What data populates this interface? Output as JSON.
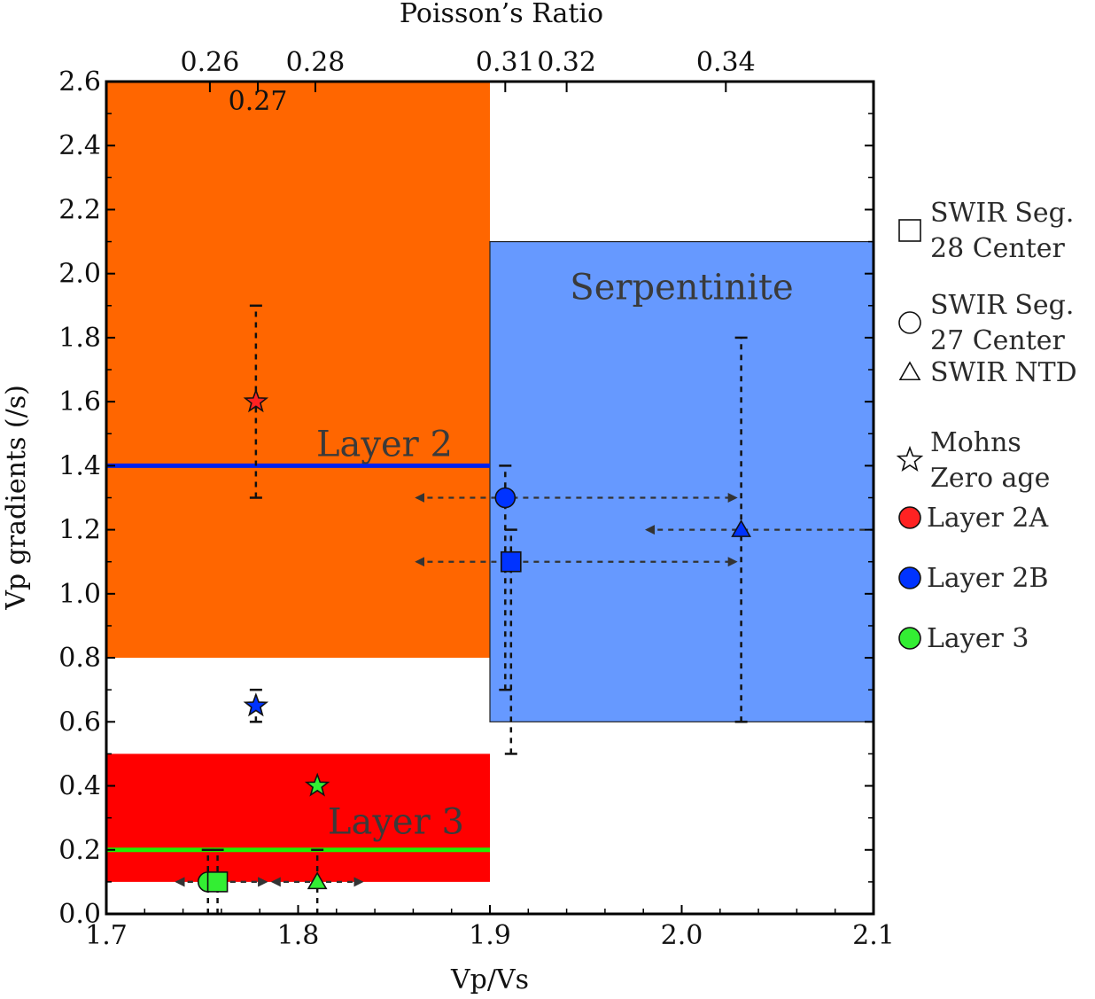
{
  "chart_data": {
    "type": "scatter",
    "xlabel": "Vp/Vs",
    "ylabel": "Vp gradients (/s)",
    "top_axis_label": "Poisson’s  Ratio",
    "xlim": [
      1.7,
      2.1
    ],
    "ylim": [
      0.0,
      2.6
    ],
    "x_ticks": [
      "1.7",
      "1.8",
      "1.9",
      "2.0",
      "2.1"
    ],
    "y_ticks": [
      "0.0",
      "0.2",
      "0.4",
      "0.6",
      "0.8",
      "1.0",
      "1.2",
      "1.4",
      "1.6",
      "1.8",
      "2.0",
      "2.2",
      "2.4",
      "2.6"
    ],
    "top_ticks": [
      {
        "x": 1.754,
        "label": "0.26"
      },
      {
        "x": 1.779,
        "label": "0.27"
      },
      {
        "x": 1.809,
        "label": "0.28"
      },
      {
        "x": 1.908,
        "label": "0.31"
      },
      {
        "x": 1.94,
        "label": "0.32"
      },
      {
        "x": 2.023,
        "label": "0.34"
      }
    ],
    "regions": [
      {
        "name": "layer2-region",
        "x": [
          1.7,
          1.9
        ],
        "y": [
          0.8,
          2.6
        ],
        "color": "#ff6600"
      },
      {
        "name": "serpentinite-region",
        "x": [
          1.9,
          2.1
        ],
        "y": [
          0.6,
          2.1
        ],
        "color": "#6699ff"
      },
      {
        "name": "layer3-region",
        "x": [
          1.7,
          1.9
        ],
        "y": [
          0.1,
          0.5
        ],
        "color": "#ff0000"
      }
    ],
    "region_labels": [
      {
        "key": "layer2",
        "text": "Layer  2",
        "x": 1.845,
        "y": 1.43
      },
      {
        "key": "serpentinite",
        "text": "Serpentinite",
        "x": 2.0,
        "y": 1.92
      },
      {
        "key": "layer3",
        "text": "Layer  3",
        "x": 1.851,
        "y": 0.25
      }
    ],
    "reference_lines": [
      {
        "name": "layer2-line",
        "y": 1.4,
        "x": [
          1.7,
          1.9
        ],
        "color": "#0022ee"
      },
      {
        "name": "layer3-line",
        "y": 0.2,
        "x": [
          1.7,
          1.9
        ],
        "color": "#22ee00"
      }
    ],
    "points": [
      {
        "name": "star-layer2a",
        "marker": "star",
        "layer": "Layer 2A",
        "x": 1.778,
        "y": 1.6,
        "yerr": [
          1.3,
          1.9
        ],
        "color": "#ff2222"
      },
      {
        "name": "star-layer2b",
        "marker": "star",
        "layer": "Layer 2B",
        "x": 1.778,
        "y": 0.65,
        "yerr": [
          0.6,
          0.7
        ],
        "color": "#0033ff"
      },
      {
        "name": "star-layer3",
        "marker": "star",
        "layer": "Layer 3",
        "x": 1.81,
        "y": 0.4,
        "color": "#33ee33"
      },
      {
        "name": "circle-layer2b",
        "marker": "circle",
        "layer": "Layer 2B",
        "x": 1.908,
        "y": 1.3,
        "yerr": [
          0.7,
          1.4
        ],
        "xrange": [
          1.86,
          2.03
        ],
        "color": "#0033ff"
      },
      {
        "name": "square-layer2b",
        "marker": "square",
        "layer": "Layer 2B",
        "x": 1.911,
        "y": 1.1,
        "yerr": [
          0.5,
          1.2
        ],
        "xrange": [
          1.86,
          2.03
        ],
        "color": "#0033ff"
      },
      {
        "name": "triangle-layer2b",
        "marker": "triangle",
        "layer": "Layer 2B",
        "x": 2.031,
        "y": 1.2,
        "yerr": [
          0.6,
          1.8
        ],
        "xrange": [
          1.98,
          2.1
        ],
        "color": "#0033ff"
      },
      {
        "name": "circle-layer3",
        "marker": "circle",
        "layer": "Layer 3",
        "x": 1.753,
        "y": 0.1,
        "yerr": [
          0.0,
          0.2
        ],
        "xrange": [
          1.735,
          1.785
        ],
        "color": "#33ee33"
      },
      {
        "name": "square-layer3",
        "marker": "square",
        "layer": "Layer 3",
        "x": 1.758,
        "y": 0.1,
        "yerr": [
          0.0,
          0.2
        ],
        "xrange": [
          1.735,
          1.785
        ],
        "color": "#33ee33"
      },
      {
        "name": "triangle-layer3",
        "marker": "triangle",
        "layer": "Layer 3",
        "x": 1.81,
        "y": 0.1,
        "yerr": [
          0.0,
          0.2
        ],
        "xrange": [
          1.785,
          1.835
        ],
        "color": "#33ee33"
      }
    ],
    "legend": [
      {
        "marker": "square",
        "lines": [
          "SWIR Seg.",
          "28  Center"
        ],
        "fill": "#ffffff"
      },
      {
        "marker": "circle",
        "lines": [
          "SWIR Seg.",
          "27  Center"
        ],
        "fill": "#ffffff"
      },
      {
        "marker": "triangle",
        "lines": [
          "SWIR NTD"
        ],
        "fill": "#ffffff"
      },
      {
        "marker": "star",
        "lines": [
          "Mohns",
          "Zero age"
        ],
        "fill": "#ffffff"
      },
      {
        "marker": "circle",
        "lines": [
          "Layer 2A"
        ],
        "fill": "#ff2222"
      },
      {
        "marker": "circle",
        "lines": [
          "Layer 2B"
        ],
        "fill": "#0033ff"
      },
      {
        "marker": "circle",
        "lines": [
          "Layer 3"
        ],
        "fill": "#33ee33"
      }
    ],
    "legend_position": "right",
    "grid": false
  }
}
